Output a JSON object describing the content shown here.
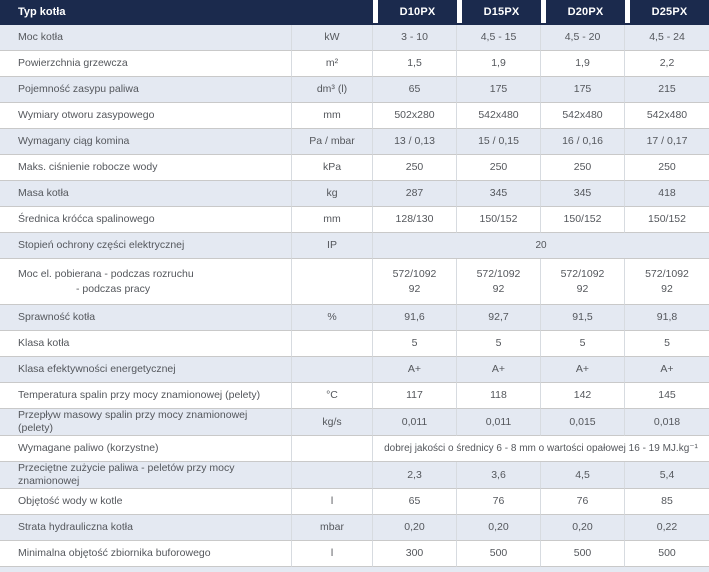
{
  "colors": {
    "navy": "#1b2a4d",
    "shade": "#e4e9f2",
    "text": "#54575c",
    "hborder": "#c9c9c9",
    "vborder": "#d7dbe0"
  },
  "table": {
    "header": {
      "title": "Typ kotła",
      "columns": [
        "D10PX",
        "D15PX",
        "D20PX",
        "D25PX"
      ]
    },
    "rows": [
      {
        "label": "Moc kotła",
        "unit": "kW",
        "values": [
          "3 - 10",
          "4,5 - 15",
          "4,5 - 20",
          "4,5 - 24"
        ]
      },
      {
        "label": "Powierzchnia grzewcza",
        "unit": "m²",
        "values": [
          "1,5",
          "1,9",
          "1,9",
          "2,2"
        ]
      },
      {
        "label": "Pojemność zasypu paliwa",
        "unit": "dm³ (l)",
        "values": [
          "65",
          "175",
          "175",
          "215"
        ]
      },
      {
        "label": "Wymiary otworu zasypowego",
        "unit": "mm",
        "values": [
          "502x280",
          "542x480",
          "542x480",
          "542x480"
        ]
      },
      {
        "label": "Wymagany ciąg komina",
        "unit": "Pa / mbar",
        "values": [
          "13 / 0,13",
          "15 / 0,15",
          "16 / 0,16",
          "17 / 0,17"
        ]
      },
      {
        "label": "Maks. ciśnienie robocze wody",
        "unit": "kPa",
        "values": [
          "250",
          "250",
          "250",
          "250"
        ]
      },
      {
        "label": "Masa kotła",
        "unit": "kg",
        "values": [
          "287",
          "345",
          "345",
          "418"
        ]
      },
      {
        "label": "Średnica króćca spalinowego",
        "unit": "mm",
        "values": [
          "128/130",
          "150/152",
          "150/152",
          "150/152"
        ]
      },
      {
        "label": "Stopień ochrony części elektrycznej",
        "unit": "IP",
        "span_value": "20"
      },
      {
        "label_lines": [
          "Moc el. pobierana - podczas rozruchu",
          "- podczas pracy"
        ],
        "unit": "",
        "values": [
          "572/1092\n92",
          "572/1092\n92",
          "572/1092\n92",
          "572/1092\n92"
        ],
        "tall": true
      },
      {
        "label": "Sprawność kotła",
        "unit": "%",
        "values": [
          "91,6",
          "92,7",
          "91,5",
          "91,8"
        ]
      },
      {
        "label": "Klasa kotła",
        "unit": "",
        "values": [
          "5",
          "5",
          "5",
          "5"
        ]
      },
      {
        "label": "Klasa efektywności energetycznej",
        "unit": "",
        "values": [
          "A+",
          "A+",
          "A+",
          "A+"
        ]
      },
      {
        "label": "Temperatura spalin przy mocy znamionowej (pelety)",
        "unit": "°C",
        "values": [
          "117",
          "118",
          "142",
          "145"
        ]
      },
      {
        "label": "Przepływ masowy spalin przy mocy znamionowej (pelety)",
        "unit": "kg/s",
        "values": [
          "0,011",
          "0,011",
          "0,015",
          "0,018"
        ]
      },
      {
        "label": "Wymagane paliwo (korzystne)",
        "unit": "",
        "span_value": "dobrej jakości o średnicy 6 - 8 mm o wartości opałowej 16 - 19 MJ.kg⁻¹"
      },
      {
        "label": "Przeciętne zużycie paliwa - peletów przy mocy znamionowej",
        "unit": "",
        "values": [
          "2,3",
          "3,6",
          "4,5",
          "5,4"
        ]
      },
      {
        "label": "Objętość wody w kotle",
        "unit": "l",
        "values": [
          "65",
          "76",
          "76",
          "85"
        ]
      },
      {
        "label": "Strata hydrauliczna kotła",
        "unit": "mbar",
        "values": [
          "0,20",
          "0,20",
          "0,20",
          "0,22"
        ]
      },
      {
        "label": "Minimalna objętość zbiornika buforowego",
        "unit": "l",
        "values": [
          "300",
          "500",
          "500",
          "500"
        ]
      }
    ]
  }
}
